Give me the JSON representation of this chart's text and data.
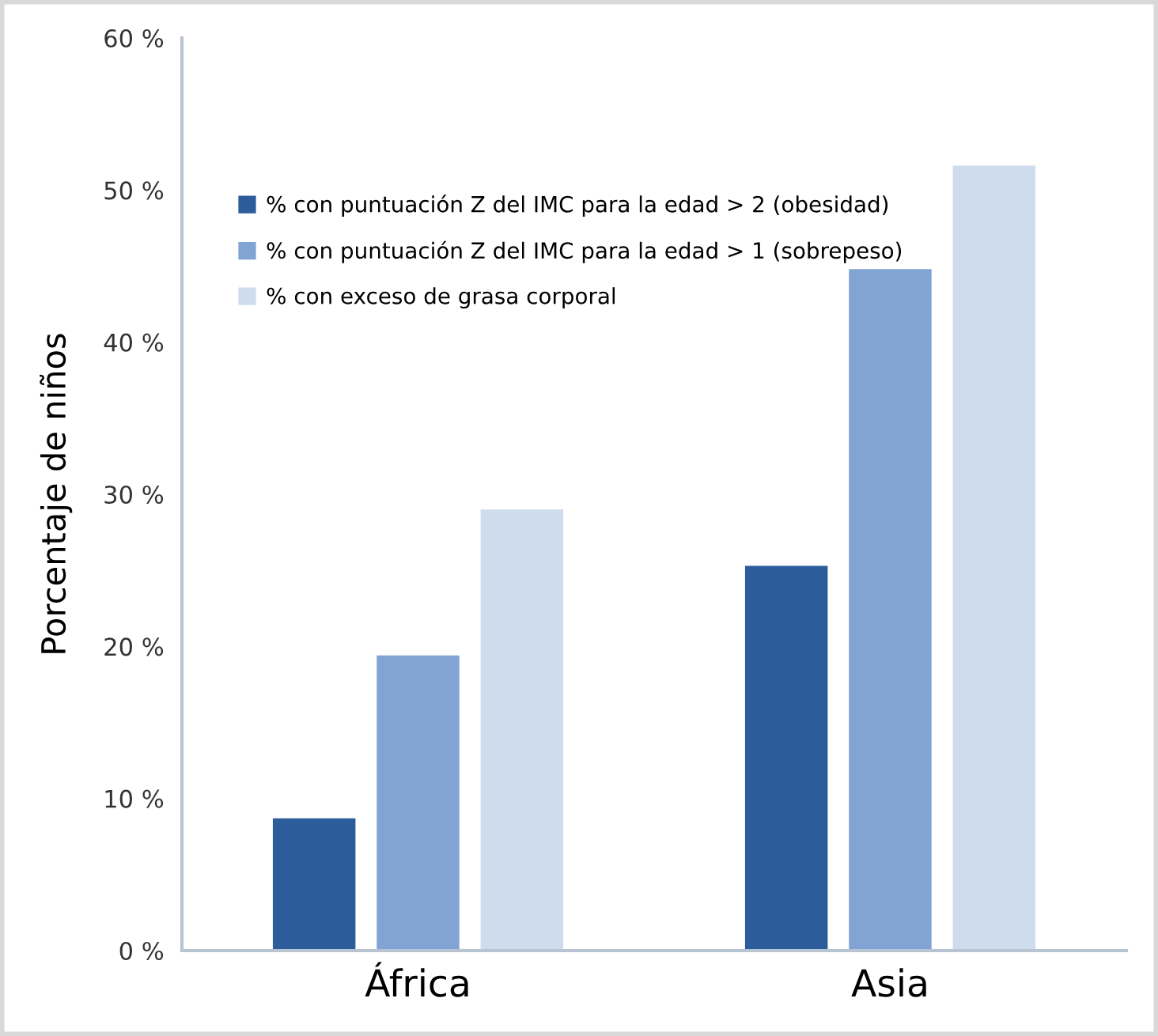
{
  "chart_data": {
    "type": "bar",
    "ylabel": "Porcentaje de niños",
    "categories": [
      "África",
      "Asia"
    ],
    "series": [
      {
        "name": "% con puntuación Z del IMC para la edad > 2 (obesidad)",
        "color": "#2d5c9b",
        "values": [
          8.7,
          25.3
        ]
      },
      {
        "name": "% con puntuación Z del IMC para la edad > 1 (sobrepeso)",
        "color": "#82a4d4",
        "values": [
          19.4,
          44.8
        ]
      },
      {
        "name": "% con exceso de grasa corporal",
        "color": "#cfdcee",
        "values": [
          29.0,
          51.6
        ]
      }
    ],
    "ylim": [
      0,
      60
    ],
    "yticks": [
      {
        "value": 0,
        "label": "0 %"
      },
      {
        "value": 10,
        "label": "10 %"
      },
      {
        "value": 20,
        "label": "20 %"
      },
      {
        "value": 30,
        "label": "30 %"
      },
      {
        "value": 40,
        "label": "40 %"
      },
      {
        "value": 50,
        "label": "50 %"
      },
      {
        "value": 60,
        "label": "60 %"
      }
    ],
    "grid": false,
    "legend": "top left"
  }
}
